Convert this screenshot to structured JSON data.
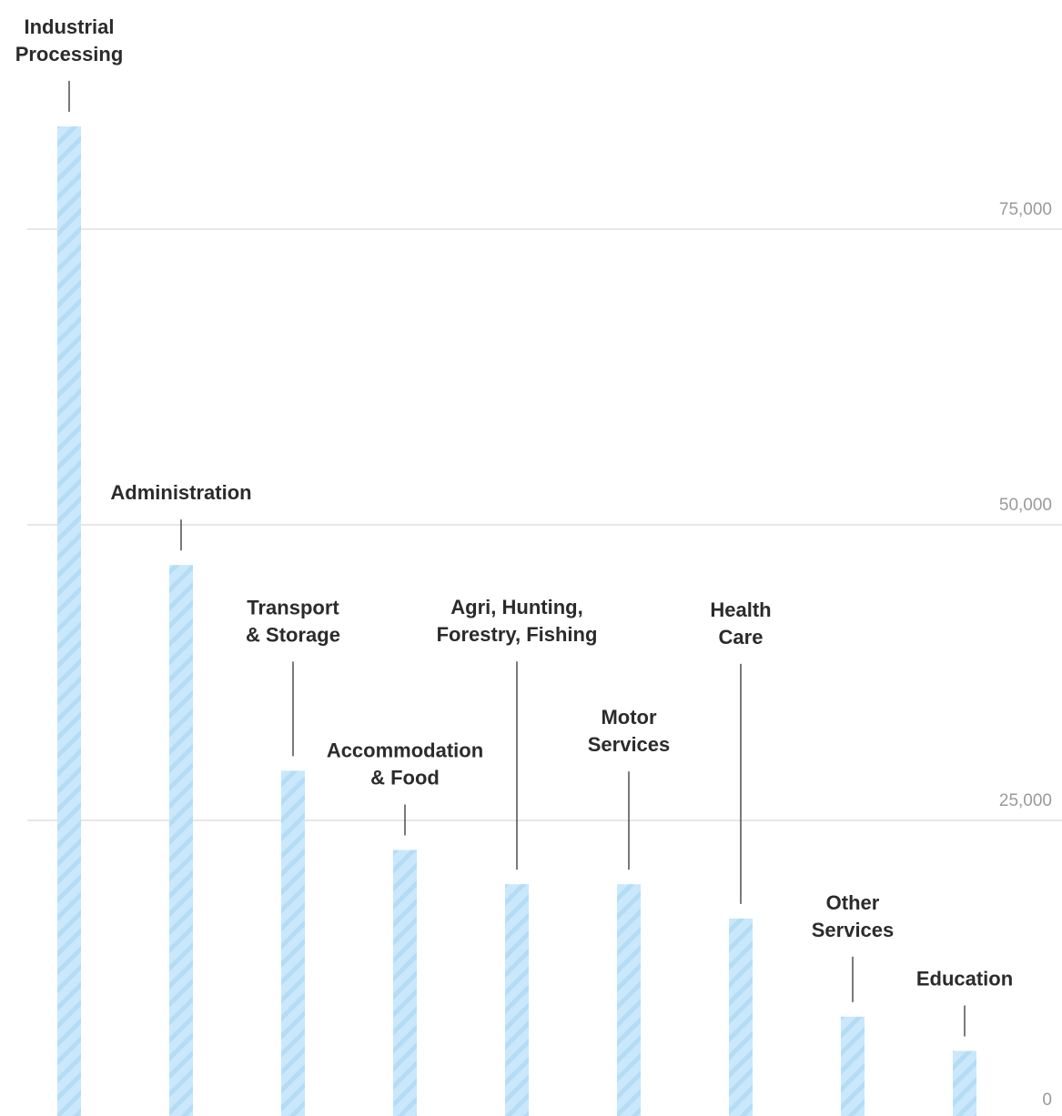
{
  "chart_data": {
    "type": "bar",
    "title": "",
    "xlabel": "",
    "ylabel": "",
    "categories": [
      [
        "Industrial",
        "Processing"
      ],
      [
        "Administration"
      ],
      [
        "Transport",
        "& Storage"
      ],
      [
        "Accommodation",
        "& Food"
      ],
      [
        "Agri, Hunting,",
        "Forestry, Fishing"
      ],
      [
        "Motor",
        "Services"
      ],
      [
        "Health",
        "Care"
      ],
      [
        "Other",
        "Services"
      ],
      [
        "Education"
      ]
    ],
    "values": [
      83700,
      46600,
      29200,
      22500,
      19600,
      19600,
      16700,
      8400,
      5500
    ],
    "ylim": [
      0,
      85000
    ],
    "yticks": [
      0,
      25000,
      50000,
      75000
    ],
    "ytick_labels": [
      "0",
      "25,000",
      "50,000",
      "75,000"
    ],
    "grid": true,
    "bar_color": "#c9e8fb",
    "stripe_color": "#b5dcf5"
  }
}
